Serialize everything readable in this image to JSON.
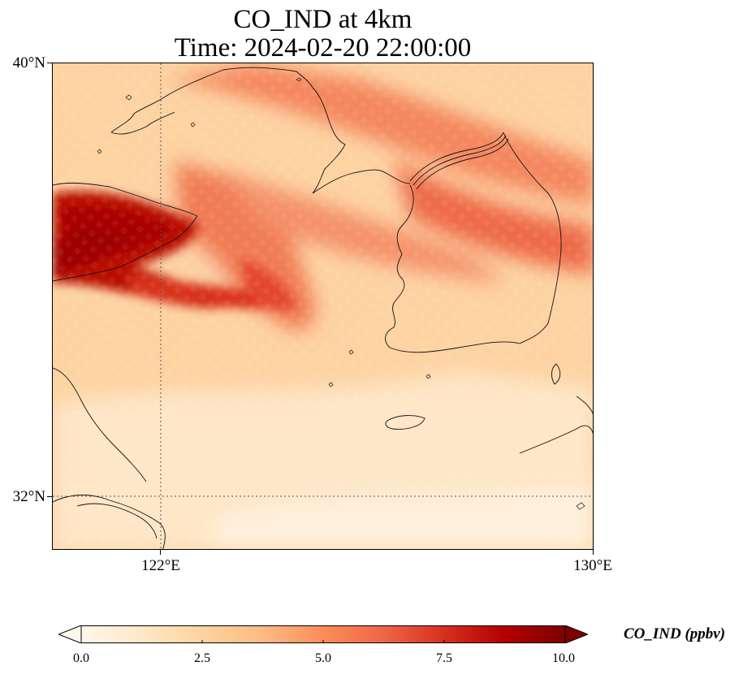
{
  "title": {
    "line1": "CO_IND at 4km",
    "line2": "Time: 2024-02-20 22:00:00"
  },
  "axes": {
    "lat_labels": [
      "40°N",
      "32°N"
    ],
    "lon_labels": [
      "122°E",
      "130°E"
    ],
    "lat_range": [
      31.0,
      40.0
    ],
    "lon_range": [
      120.0,
      130.0
    ],
    "gridlines": "dotted at 32°N and 122°E"
  },
  "colorbar": {
    "title": "CO_IND (ppbv)",
    "tick_labels": [
      "0.0",
      "2.5",
      "5.0",
      "7.5",
      "10.0"
    ],
    "range": [
      0,
      10
    ],
    "colormap": "OrRd",
    "extend": "both"
  },
  "field": {
    "variable": "CO_IND",
    "units": "ppbv",
    "max_region": "Shandong peninsula coast, about 8–10 ppbv",
    "secondary_band": "Korean peninsula and Bohai, about 5–7 ppbv",
    "background": "about 1–3 ppbv"
  },
  "colors": {
    "low": "#fff5eb",
    "mid": "#fdbb84",
    "high": "#ef6548",
    "max": "#b30000",
    "extend_max": "#7f0000"
  }
}
